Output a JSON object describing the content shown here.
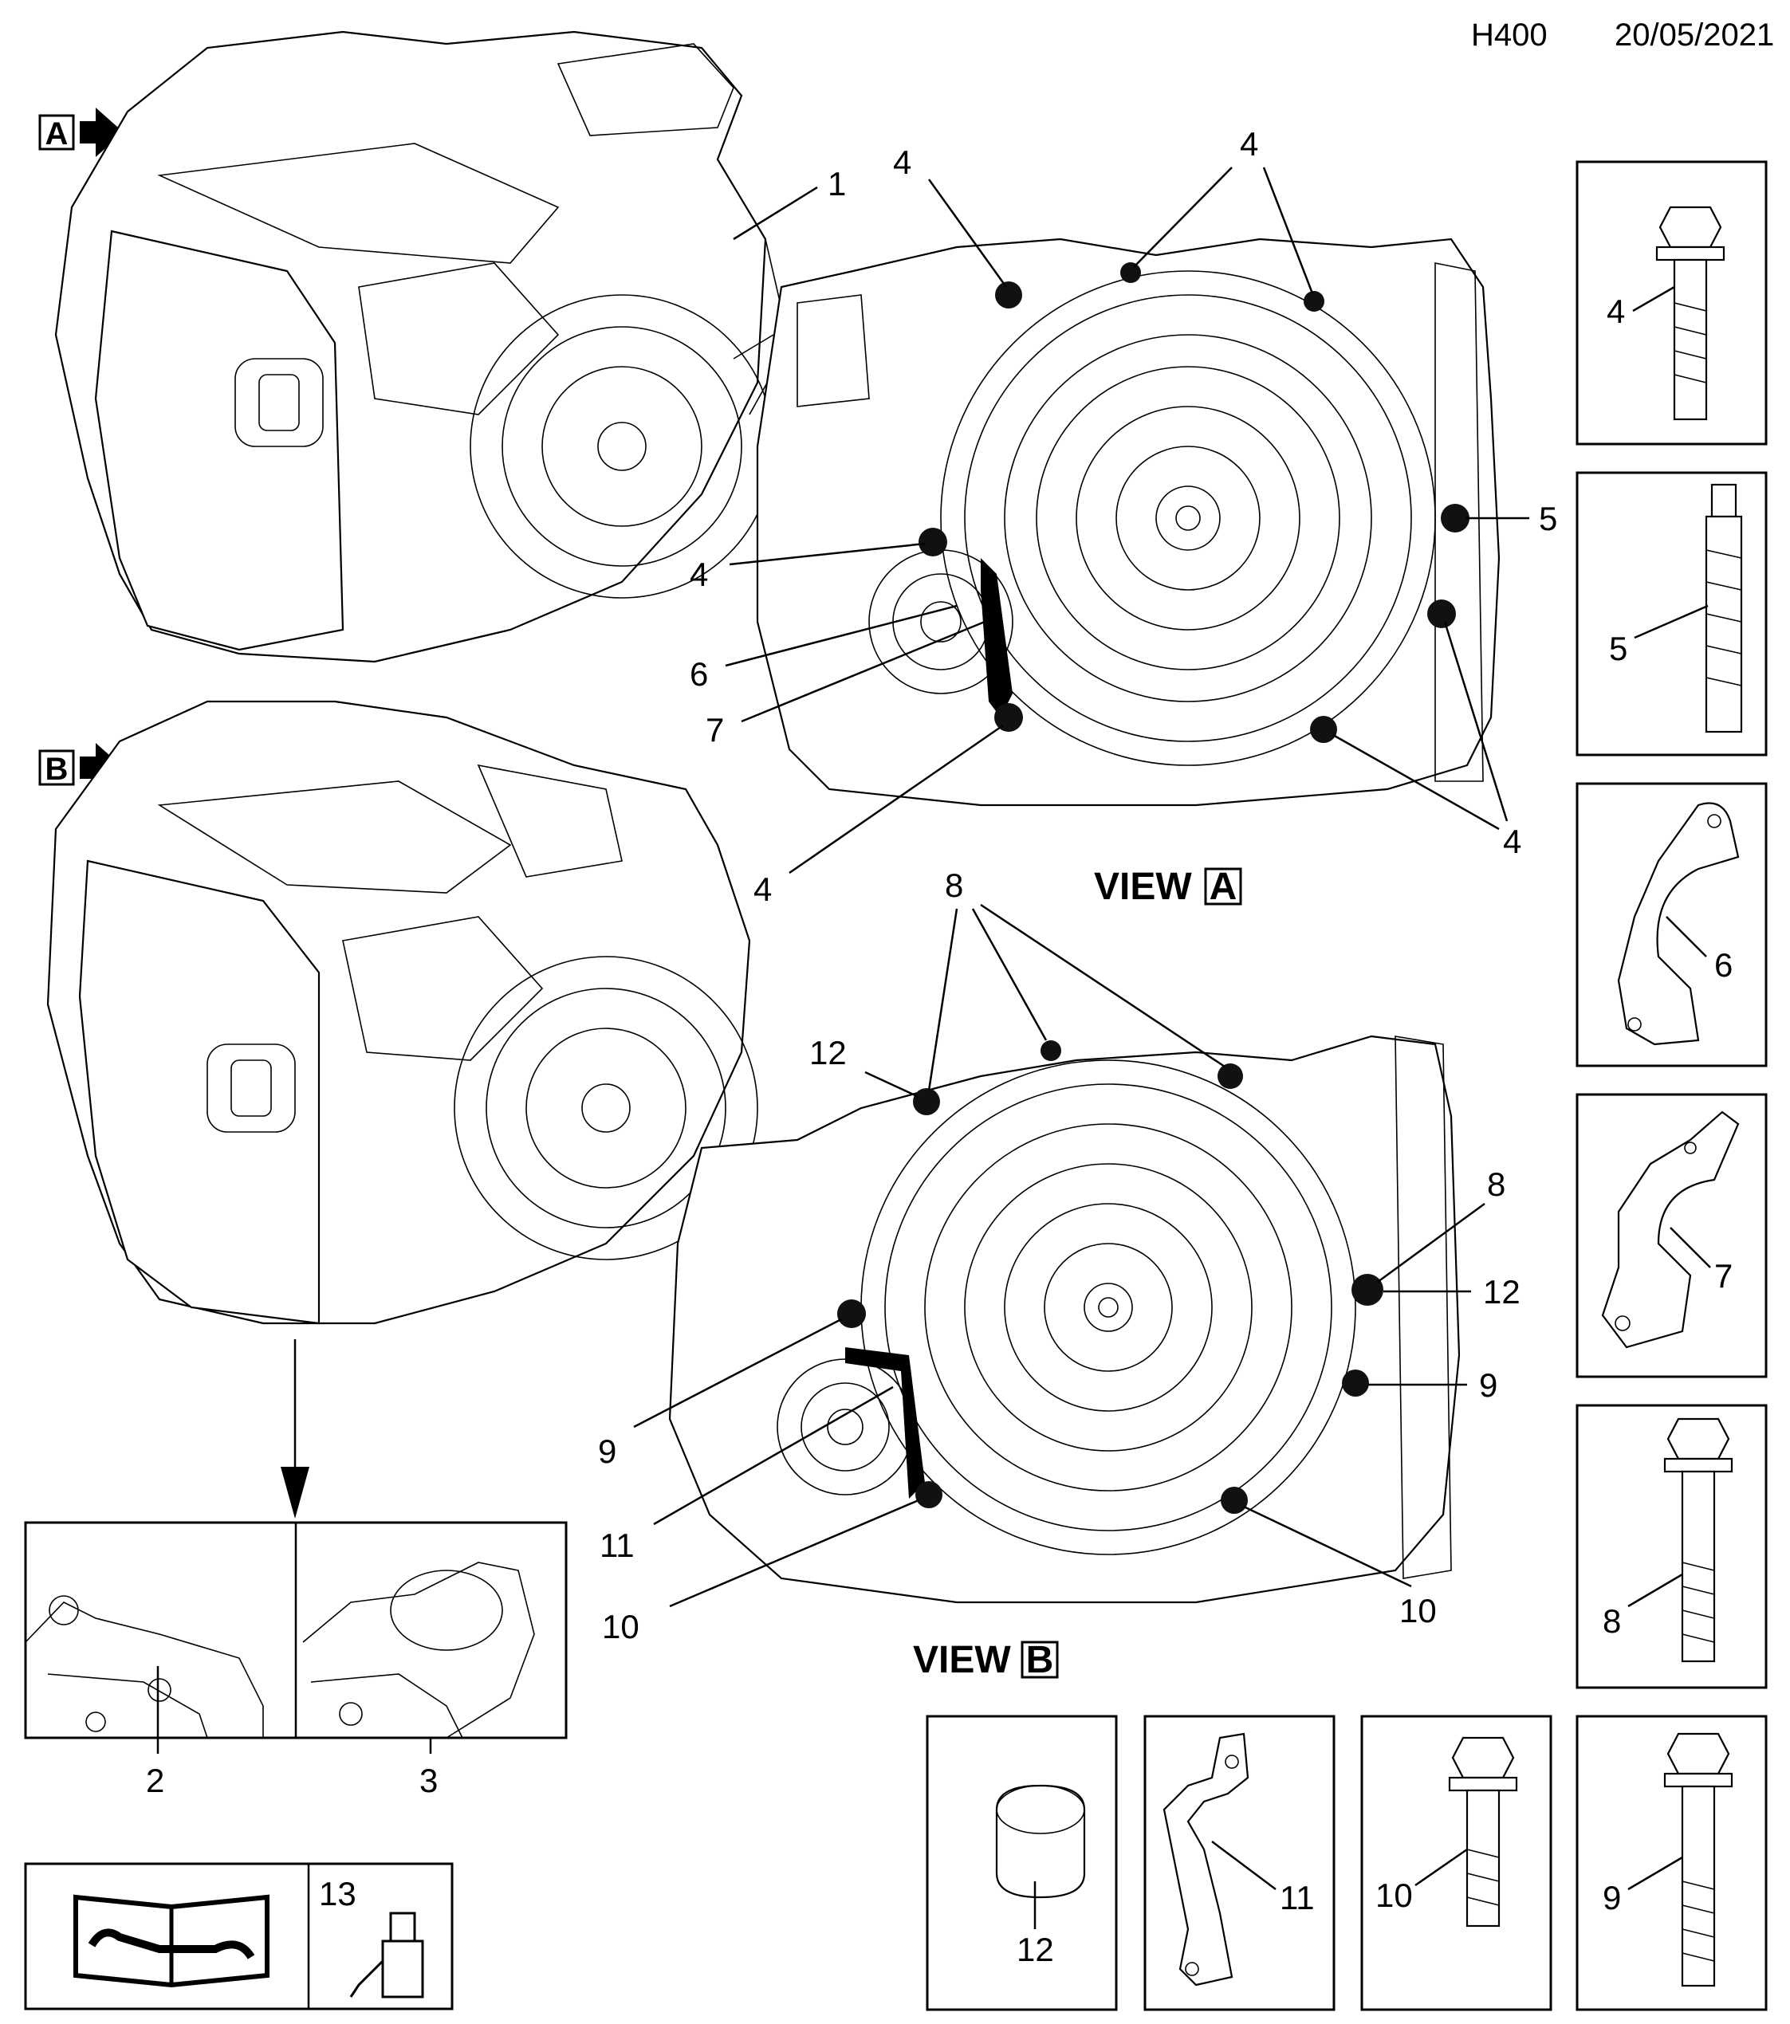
{
  "header": {
    "code": "H400",
    "date": "20/05/2021"
  },
  "markers": {
    "a": "A",
    "b": "B"
  },
  "views": {
    "view_word": "VIEW",
    "a_letter": "A",
    "b_letter": "B"
  },
  "callouts": {
    "c1": "1",
    "c2": "2",
    "c3": "3",
    "c4_top_left": "4",
    "c4_top_right": "4",
    "c4_mid": "4",
    "c4_low": "4",
    "c4_right": "4",
    "c5": "5",
    "c6": "6",
    "c7": "7",
    "c8_top": "8",
    "c8_right": "8",
    "c9_left": "9",
    "c9_right": "9",
    "c10_left": "10",
    "c10_right": "10",
    "c11": "11",
    "c12_top": "12",
    "c12_right": "12"
  },
  "legend": {
    "bolt4": "4",
    "stud5": "5",
    "bracket6": "6",
    "bracket7": "7",
    "bolt8": "8",
    "bolt9": "9",
    "bolt10": "10",
    "bracket11": "11",
    "sleeve12": "12",
    "sealant13": "13"
  },
  "icons": {
    "marker_arrow": "right-arrow-icon",
    "manual": "repair-manual-icon",
    "sealant": "sealant-tube-icon"
  }
}
